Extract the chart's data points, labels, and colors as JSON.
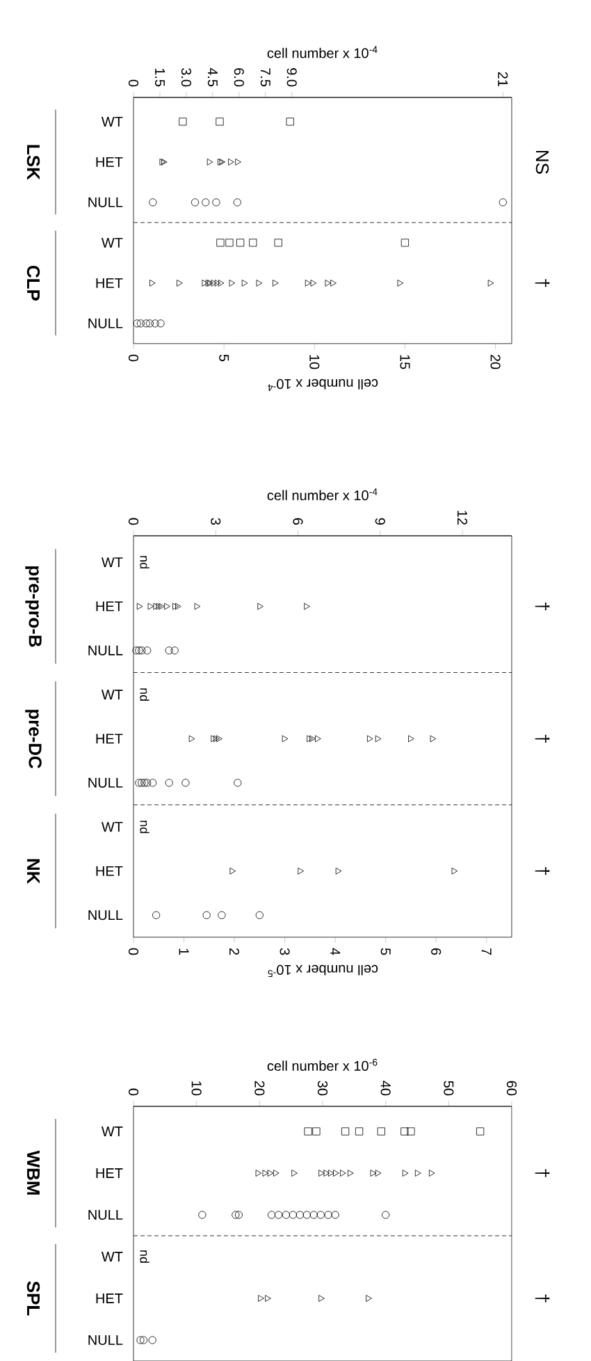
{
  "chart_data": [
    {
      "type": "scatter",
      "orientation": "horizontal",
      "color": "#000000",
      "categories": [
        "WT",
        "HET",
        "NULL",
        "WT",
        "HET",
        "NULL"
      ],
      "x2label": "cell number x 10$^{-4}$",
      "x2lim": [
        0,
        21.5
      ],
      "x2ticks": [
        0,
        1.5,
        {
          "value": 3,
          "label": "3.0"
        },
        4.5,
        {
          "value": 6,
          "label": "6.0"
        },
        7.5,
        {
          "value": 9,
          "label": "9.0"
        },
        21
      ],
      "xlabel": "cell number x 10$^{-4}$",
      "xlim": [
        0,
        20.9
      ],
      "xticks": [
        0,
        5,
        10,
        15,
        20
      ],
      "annotations": [
        "LSK",
        "CLP",
        "NS",
        "†"
      ],
      "series": [
        {
          "marker": "square",
          "axis": "x2",
          "values": [
            2.8,
            null,
            null,
            null,
            null,
            null
          ]
        },
        {
          "marker": "square",
          "axis": "x2",
          "values": [
            4.9,
            null,
            null,
            null,
            null,
            null
          ]
        },
        {
          "marker": "square",
          "axis": "x2",
          "values": [
            8.9,
            null,
            null,
            null,
            null,
            null
          ]
        },
        {
          "marker": "triangle",
          "axis": "x2",
          "values": [
            null,
            1.6,
            null,
            null,
            null,
            null
          ]
        },
        {
          "marker": "triangle",
          "axis": "x2",
          "values": [
            null,
            1.7,
            null,
            null,
            null,
            null
          ]
        },
        {
          "marker": "triangle",
          "axis": "x2",
          "values": [
            null,
            4.3,
            null,
            null,
            null,
            null
          ]
        },
        {
          "marker": "triangle",
          "axis": "x2",
          "values": [
            null,
            4.9,
            null,
            null,
            null,
            null
          ]
        },
        {
          "marker": "triangle",
          "axis": "x2",
          "values": [
            null,
            5.0,
            null,
            null,
            null,
            null
          ]
        },
        {
          "marker": "triangle",
          "axis": "x2",
          "values": [
            null,
            5.5,
            null,
            null,
            null,
            null
          ]
        },
        {
          "marker": "triangle",
          "axis": "x2",
          "values": [
            null,
            5.9,
            null,
            null,
            null,
            null
          ]
        },
        {
          "marker": "circle",
          "axis": "x2",
          "values": [
            null,
            null,
            1.1,
            null,
            null,
            null
          ]
        },
        {
          "marker": "circle",
          "axis": "x2",
          "values": [
            null,
            null,
            3.5,
            null,
            null,
            null
          ]
        },
        {
          "marker": "circle",
          "axis": "x2",
          "values": [
            null,
            null,
            4.1,
            null,
            null,
            null
          ]
        },
        {
          "marker": "circle",
          "axis": "x2",
          "values": [
            null,
            null,
            4.7,
            null,
            null,
            null
          ]
        },
        {
          "marker": "circle",
          "axis": "x2",
          "values": [
            null,
            null,
            5.9,
            null,
            null,
            null
          ]
        },
        {
          "marker": "circle",
          "axis": "x2",
          "values": [
            null,
            null,
            21,
            null,
            null,
            null
          ]
        },
        {
          "marker": "square",
          "values": [
            null,
            null,
            null,
            4.8,
            null,
            null
          ]
        },
        {
          "marker": "square",
          "values": [
            null,
            null,
            null,
            5.3,
            null,
            null
          ]
        },
        {
          "marker": "square",
          "values": [
            null,
            null,
            null,
            5.9,
            null,
            null
          ]
        },
        {
          "marker": "square",
          "values": [
            null,
            null,
            null,
            6.6,
            null,
            null
          ]
        },
        {
          "marker": "square",
          "values": [
            null,
            null,
            null,
            8.0,
            null,
            null
          ]
        },
        {
          "marker": "square",
          "values": [
            null,
            null,
            null,
            15.0,
            null,
            null
          ]
        },
        {
          "marker": "triangle",
          "values": [
            null,
            null,
            null,
            null,
            1.0,
            null
          ]
        },
        {
          "marker": "triangle",
          "values": [
            null,
            null,
            null,
            null,
            2.5,
            null
          ]
        },
        {
          "marker": "triangle",
          "values": [
            null,
            null,
            null,
            null,
            3.9,
            null
          ]
        },
        {
          "marker": "triangle",
          "values": [
            null,
            null,
            null,
            null,
            4.1,
            null
          ]
        },
        {
          "marker": "triangle",
          "values": [
            null,
            null,
            null,
            null,
            4.2,
            null
          ]
        },
        {
          "marker": "triangle",
          "values": [
            null,
            null,
            null,
            null,
            4.4,
            null
          ]
        },
        {
          "marker": "triangle",
          "values": [
            null,
            null,
            null,
            null,
            4.6,
            null
          ]
        },
        {
          "marker": "triangle",
          "values": [
            null,
            null,
            null,
            null,
            4.8,
            null
          ]
        },
        {
          "marker": "triangle",
          "values": [
            null,
            null,
            null,
            null,
            5.4,
            null
          ]
        },
        {
          "marker": "triangle",
          "values": [
            null,
            null,
            null,
            null,
            6.1,
            null
          ]
        },
        {
          "marker": "triangle",
          "values": [
            null,
            null,
            null,
            null,
            6.9,
            null
          ]
        },
        {
          "marker": "triangle",
          "values": [
            null,
            null,
            null,
            null,
            7.8,
            null
          ]
        },
        {
          "marker": "triangle",
          "values": [
            null,
            null,
            null,
            null,
            9.6,
            null
          ]
        },
        {
          "marker": "triangle",
          "values": [
            null,
            null,
            null,
            null,
            9.9,
            null
          ]
        },
        {
          "marker": "triangle",
          "values": [
            null,
            null,
            null,
            null,
            10.7,
            null
          ]
        },
        {
          "marker": "triangle",
          "values": [
            null,
            null,
            null,
            null,
            11.0,
            null
          ]
        },
        {
          "marker": "triangle",
          "values": [
            null,
            null,
            null,
            null,
            14.7,
            null
          ]
        },
        {
          "marker": "triangle",
          "values": [
            null,
            null,
            null,
            null,
            19.7,
            null
          ]
        },
        {
          "marker": "circle",
          "values": [
            null,
            null,
            null,
            null,
            null,
            0.2
          ]
        },
        {
          "marker": "circle",
          "values": [
            null,
            null,
            null,
            null,
            null,
            0.4
          ]
        },
        {
          "marker": "circle",
          "values": [
            null,
            null,
            null,
            null,
            null,
            0.7
          ]
        },
        {
          "marker": "circle",
          "values": [
            null,
            null,
            null,
            null,
            null,
            0.9
          ]
        },
        {
          "marker": "circle",
          "values": [
            null,
            null,
            null,
            null,
            null,
            1.2
          ]
        },
        {
          "marker": "circle",
          "values": [
            null,
            null,
            null,
            null,
            null,
            1.5
          ]
        }
      ]
    },
    {
      "type": "scatter",
      "orientation": "horizontal",
      "color": "#000000",
      "categories": [
        "WT",
        "HET",
        "NULL",
        "WT",
        "HET",
        "NULL",
        "WT",
        "HET",
        "NULL"
      ],
      "x2label": "cell number x 10$^{-4}$",
      "x2lim": [
        0,
        13.8
      ],
      "x2ticks": [
        0,
        3,
        6,
        9,
        12
      ],
      "xlabel": "cell number x 10$^{-5}$",
      "xlim": [
        0,
        7.5
      ],
      "xticks": [
        0,
        1,
        2,
        3,
        4,
        5,
        6,
        7
      ],
      "annotations": [
        "pre-pro-B",
        "pre-DC",
        "NK",
        "†",
        "†",
        "†"
      ],
      "series": [
        {
          "marker": "square",
          "axis": "x2",
          "values": [
            null,
            null,
            null,
            null,
            null,
            null,
            null,
            null,
            null
          ],
          "value_labels": [
            "nd",
            null,
            null,
            "nd",
            null,
            null,
            null,
            null,
            null
          ]
        },
        {
          "marker": "square",
          "values": [
            null,
            null,
            null,
            null,
            null,
            null,
            null,
            null,
            null
          ],
          "value_labels": [
            null,
            null,
            null,
            null,
            null,
            null,
            "nd",
            null,
            null
          ]
        },
        {
          "marker": "triangle",
          "axis": "x2",
          "values": [
            null,
            0.2,
            null,
            null,
            2.1,
            null,
            null,
            null,
            null
          ]
        },
        {
          "marker": "triangle",
          "axis": "x2",
          "values": [
            null,
            0.6,
            null,
            null,
            2.9,
            null,
            null,
            null,
            null
          ]
        },
        {
          "marker": "triangle",
          "axis": "x2",
          "values": [
            null,
            0.8,
            null,
            null,
            3.0,
            null,
            null,
            null,
            null
          ]
        },
        {
          "marker": "triangle",
          "axis": "x2",
          "values": [
            null,
            0.9,
            null,
            null,
            3.1,
            null,
            null,
            null,
            null
          ]
        },
        {
          "marker": "triangle",
          "axis": "x2",
          "values": [
            null,
            1.0,
            null,
            null,
            5.5,
            null,
            null,
            null,
            null
          ]
        },
        {
          "marker": "triangle",
          "axis": "x2",
          "values": [
            null,
            1.2,
            null,
            null,
            6.4,
            null,
            null,
            null,
            null
          ]
        },
        {
          "marker": "triangle",
          "axis": "x2",
          "values": [
            null,
            1.5,
            null,
            null,
            6.5,
            null,
            null,
            null,
            null
          ]
        },
        {
          "marker": "triangle",
          "axis": "x2",
          "values": [
            null,
            1.6,
            null,
            null,
            6.7,
            null,
            null,
            null,
            null
          ]
        },
        {
          "marker": "triangle",
          "axis": "x2",
          "values": [
            null,
            2.3,
            null,
            null,
            8.6,
            null,
            null,
            null,
            null
          ]
        },
        {
          "marker": "triangle",
          "axis": "x2",
          "values": [
            null,
            4.6,
            null,
            null,
            8.9,
            null,
            null,
            null,
            null
          ]
        },
        {
          "marker": "triangle",
          "axis": "x2",
          "values": [
            null,
            6.3,
            null,
            null,
            10.1,
            null,
            null,
            null,
            null
          ]
        },
        {
          "marker": "triangle",
          "axis": "x2",
          "values": [
            null,
            null,
            null,
            null,
            10.9,
            null,
            null,
            null,
            null
          ]
        },
        {
          "marker": "circle",
          "axis": "x2",
          "values": [
            null,
            null,
            0.1,
            null,
            null,
            0.2,
            null,
            null,
            null
          ]
        },
        {
          "marker": "circle",
          "axis": "x2",
          "values": [
            null,
            null,
            0.2,
            null,
            null,
            0.3,
            null,
            null,
            null
          ]
        },
        {
          "marker": "circle",
          "axis": "x2",
          "values": [
            null,
            null,
            0.3,
            null,
            null,
            0.4,
            null,
            null,
            null
          ]
        },
        {
          "marker": "circle",
          "axis": "x2",
          "values": [
            null,
            null,
            0.5,
            null,
            null,
            0.5,
            null,
            null,
            null
          ]
        },
        {
          "marker": "circle",
          "axis": "x2",
          "values": [
            null,
            null,
            1.3,
            null,
            null,
            0.7,
            null,
            null,
            null
          ]
        },
        {
          "marker": "circle",
          "axis": "x2",
          "values": [
            null,
            null,
            1.5,
            null,
            null,
            1.3,
            null,
            null,
            null
          ]
        },
        {
          "marker": "circle",
          "axis": "x2",
          "values": [
            null,
            null,
            null,
            null,
            null,
            1.9,
            null,
            null,
            null
          ]
        },
        {
          "marker": "circle",
          "axis": "x2",
          "values": [
            null,
            null,
            null,
            null,
            null,
            3.8,
            null,
            null,
            null
          ]
        },
        {
          "marker": "triangle",
          "values": [
            null,
            null,
            null,
            null,
            null,
            null,
            null,
            1.95,
            null
          ]
        },
        {
          "marker": "triangle",
          "values": [
            null,
            null,
            null,
            null,
            null,
            null,
            null,
            3.3,
            null
          ]
        },
        {
          "marker": "triangle",
          "values": [
            null,
            null,
            null,
            null,
            null,
            null,
            null,
            4.05,
            null
          ]
        },
        {
          "marker": "triangle",
          "values": [
            null,
            null,
            null,
            null,
            null,
            null,
            null,
            6.35,
            null
          ]
        },
        {
          "marker": "circle",
          "values": [
            null,
            null,
            null,
            null,
            null,
            null,
            null,
            null,
            0.45
          ]
        },
        {
          "marker": "circle",
          "values": [
            null,
            null,
            null,
            null,
            null,
            null,
            null,
            null,
            1.45
          ]
        },
        {
          "marker": "circle",
          "values": [
            null,
            null,
            null,
            null,
            null,
            null,
            null,
            null,
            1.75
          ]
        },
        {
          "marker": "circle",
          "values": [
            null,
            null,
            null,
            null,
            null,
            null,
            null,
            null,
            2.5
          ]
        }
      ]
    },
    {
      "type": "scatter",
      "orientation": "horizontal",
      "color": "#000000",
      "categories": [
        "WT",
        "HET",
        "NULL",
        "WT",
        "HET",
        "NULL"
      ],
      "x2label": "cell number x 10$^{-6}$",
      "x2lim": [
        0,
        60
      ],
      "x2ticks": [
        0,
        10,
        20,
        30,
        40,
        50,
        60
      ],
      "annotations": [
        "WBM",
        "SPL",
        "†",
        "†"
      ],
      "series": [
        {
          "marker": "square",
          "axis": "x2",
          "values": [
            27.7,
            null,
            null,
            null,
            null,
            null
          ],
          "value_labels": [
            null,
            null,
            null,
            "nd",
            null,
            null
          ]
        },
        {
          "marker": "square",
          "axis": "x2",
          "values": [
            29.0,
            null,
            null,
            null,
            null,
            null
          ]
        },
        {
          "marker": "square",
          "axis": "x2",
          "values": [
            33.6,
            null,
            null,
            null,
            null,
            null
          ]
        },
        {
          "marker": "square",
          "axis": "x2",
          "values": [
            35.8,
            null,
            null,
            null,
            null,
            null
          ]
        },
        {
          "marker": "square",
          "axis": "x2",
          "values": [
            39.3,
            null,
            null,
            null,
            null,
            null
          ]
        },
        {
          "marker": "square",
          "axis": "x2",
          "values": [
            43.0,
            null,
            null,
            null,
            null,
            null
          ]
        },
        {
          "marker": "square",
          "axis": "x2",
          "values": [
            44.0,
            null,
            null,
            null,
            null,
            null
          ]
        },
        {
          "marker": "square",
          "axis": "x2",
          "values": [
            55.0,
            null,
            null,
            null,
            null,
            null
          ]
        },
        {
          "marker": "triangle",
          "axis": "x2",
          "values": [
            null,
            19.7,
            null,
            null,
            20.1,
            null
          ]
        },
        {
          "marker": "triangle",
          "axis": "x2",
          "values": [
            null,
            20.8,
            null,
            null,
            21.2,
            null
          ]
        },
        {
          "marker": "triangle",
          "axis": "x2",
          "values": [
            null,
            21.6,
            null,
            null,
            29.7,
            null
          ]
        },
        {
          "marker": "triangle",
          "axis": "x2",
          "values": [
            null,
            22.5,
            null,
            null,
            37.2,
            null
          ]
        },
        {
          "marker": "triangle",
          "axis": "x2",
          "values": [
            null,
            25.4,
            null,
            null,
            null,
            null
          ]
        },
        {
          "marker": "triangle",
          "axis": "x2",
          "values": [
            null,
            29.7,
            null,
            null,
            null,
            null
          ]
        },
        {
          "marker": "triangle",
          "axis": "x2",
          "values": [
            null,
            30.5,
            null,
            null,
            null,
            null
          ]
        },
        {
          "marker": "triangle",
          "axis": "x2",
          "values": [
            null,
            31.2,
            null,
            null,
            null,
            null
          ]
        },
        {
          "marker": "triangle",
          "axis": "x2",
          "values": [
            null,
            32.0,
            null,
            null,
            null,
            null
          ]
        },
        {
          "marker": "triangle",
          "axis": "x2",
          "values": [
            null,
            33.1,
            null,
            null,
            null,
            null
          ]
        },
        {
          "marker": "triangle",
          "axis": "x2",
          "values": [
            null,
            34.3,
            null,
            null,
            null,
            null
          ]
        },
        {
          "marker": "triangle",
          "axis": "x2",
          "values": [
            null,
            37.9,
            null,
            null,
            null,
            null
          ]
        },
        {
          "marker": "triangle",
          "axis": "x2",
          "values": [
            null,
            38.7,
            null,
            null,
            null,
            null
          ]
        },
        {
          "marker": "triangle",
          "axis": "x2",
          "values": [
            null,
            43.0,
            null,
            null,
            null,
            null
          ]
        },
        {
          "marker": "triangle",
          "axis": "x2",
          "values": [
            null,
            45.0,
            null,
            null,
            null,
            null
          ]
        },
        {
          "marker": "triangle",
          "axis": "x2",
          "values": [
            null,
            47.2,
            null,
            null,
            null,
            null
          ]
        },
        {
          "marker": "circle",
          "axis": "x2",
          "values": [
            null,
            null,
            10.9,
            null,
            null,
            1.1
          ]
        },
        {
          "marker": "circle",
          "axis": "x2",
          "values": [
            null,
            null,
            16.2,
            null,
            null,
            1.6
          ]
        },
        {
          "marker": "circle",
          "axis": "x2",
          "values": [
            null,
            null,
            16.7,
            null,
            null,
            3.0
          ]
        },
        {
          "marker": "circle",
          "axis": "x2",
          "values": [
            null,
            null,
            21.9,
            null,
            null,
            null
          ]
        },
        {
          "marker": "circle",
          "axis": "x2",
          "values": [
            null,
            null,
            23.0,
            null,
            null,
            null
          ]
        },
        {
          "marker": "circle",
          "axis": "x2",
          "values": [
            null,
            null,
            24.2,
            null,
            null,
            null
          ]
        },
        {
          "marker": "circle",
          "axis": "x2",
          "values": [
            null,
            null,
            25.3,
            null,
            null,
            null
          ]
        },
        {
          "marker": "circle",
          "axis": "x2",
          "values": [
            null,
            null,
            26.4,
            null,
            null,
            null
          ]
        },
        {
          "marker": "circle",
          "axis": "x2",
          "values": [
            null,
            null,
            27.5,
            null,
            null,
            null
          ]
        },
        {
          "marker": "circle",
          "axis": "x2",
          "values": [
            null,
            null,
            28.6,
            null,
            null,
            null
          ]
        },
        {
          "marker": "circle",
          "axis": "x2",
          "values": [
            null,
            null,
            29.7,
            null,
            null,
            null
          ]
        },
        {
          "marker": "circle",
          "axis": "x2",
          "values": [
            null,
            null,
            30.9,
            null,
            null,
            null
          ]
        },
        {
          "marker": "circle",
          "axis": "x2",
          "values": [
            null,
            null,
            32.0,
            null,
            null,
            null
          ]
        },
        {
          "marker": "circle",
          "axis": "x2",
          "values": [
            null,
            null,
            40.0,
            null,
            null,
            null
          ]
        }
      ]
    }
  ]
}
